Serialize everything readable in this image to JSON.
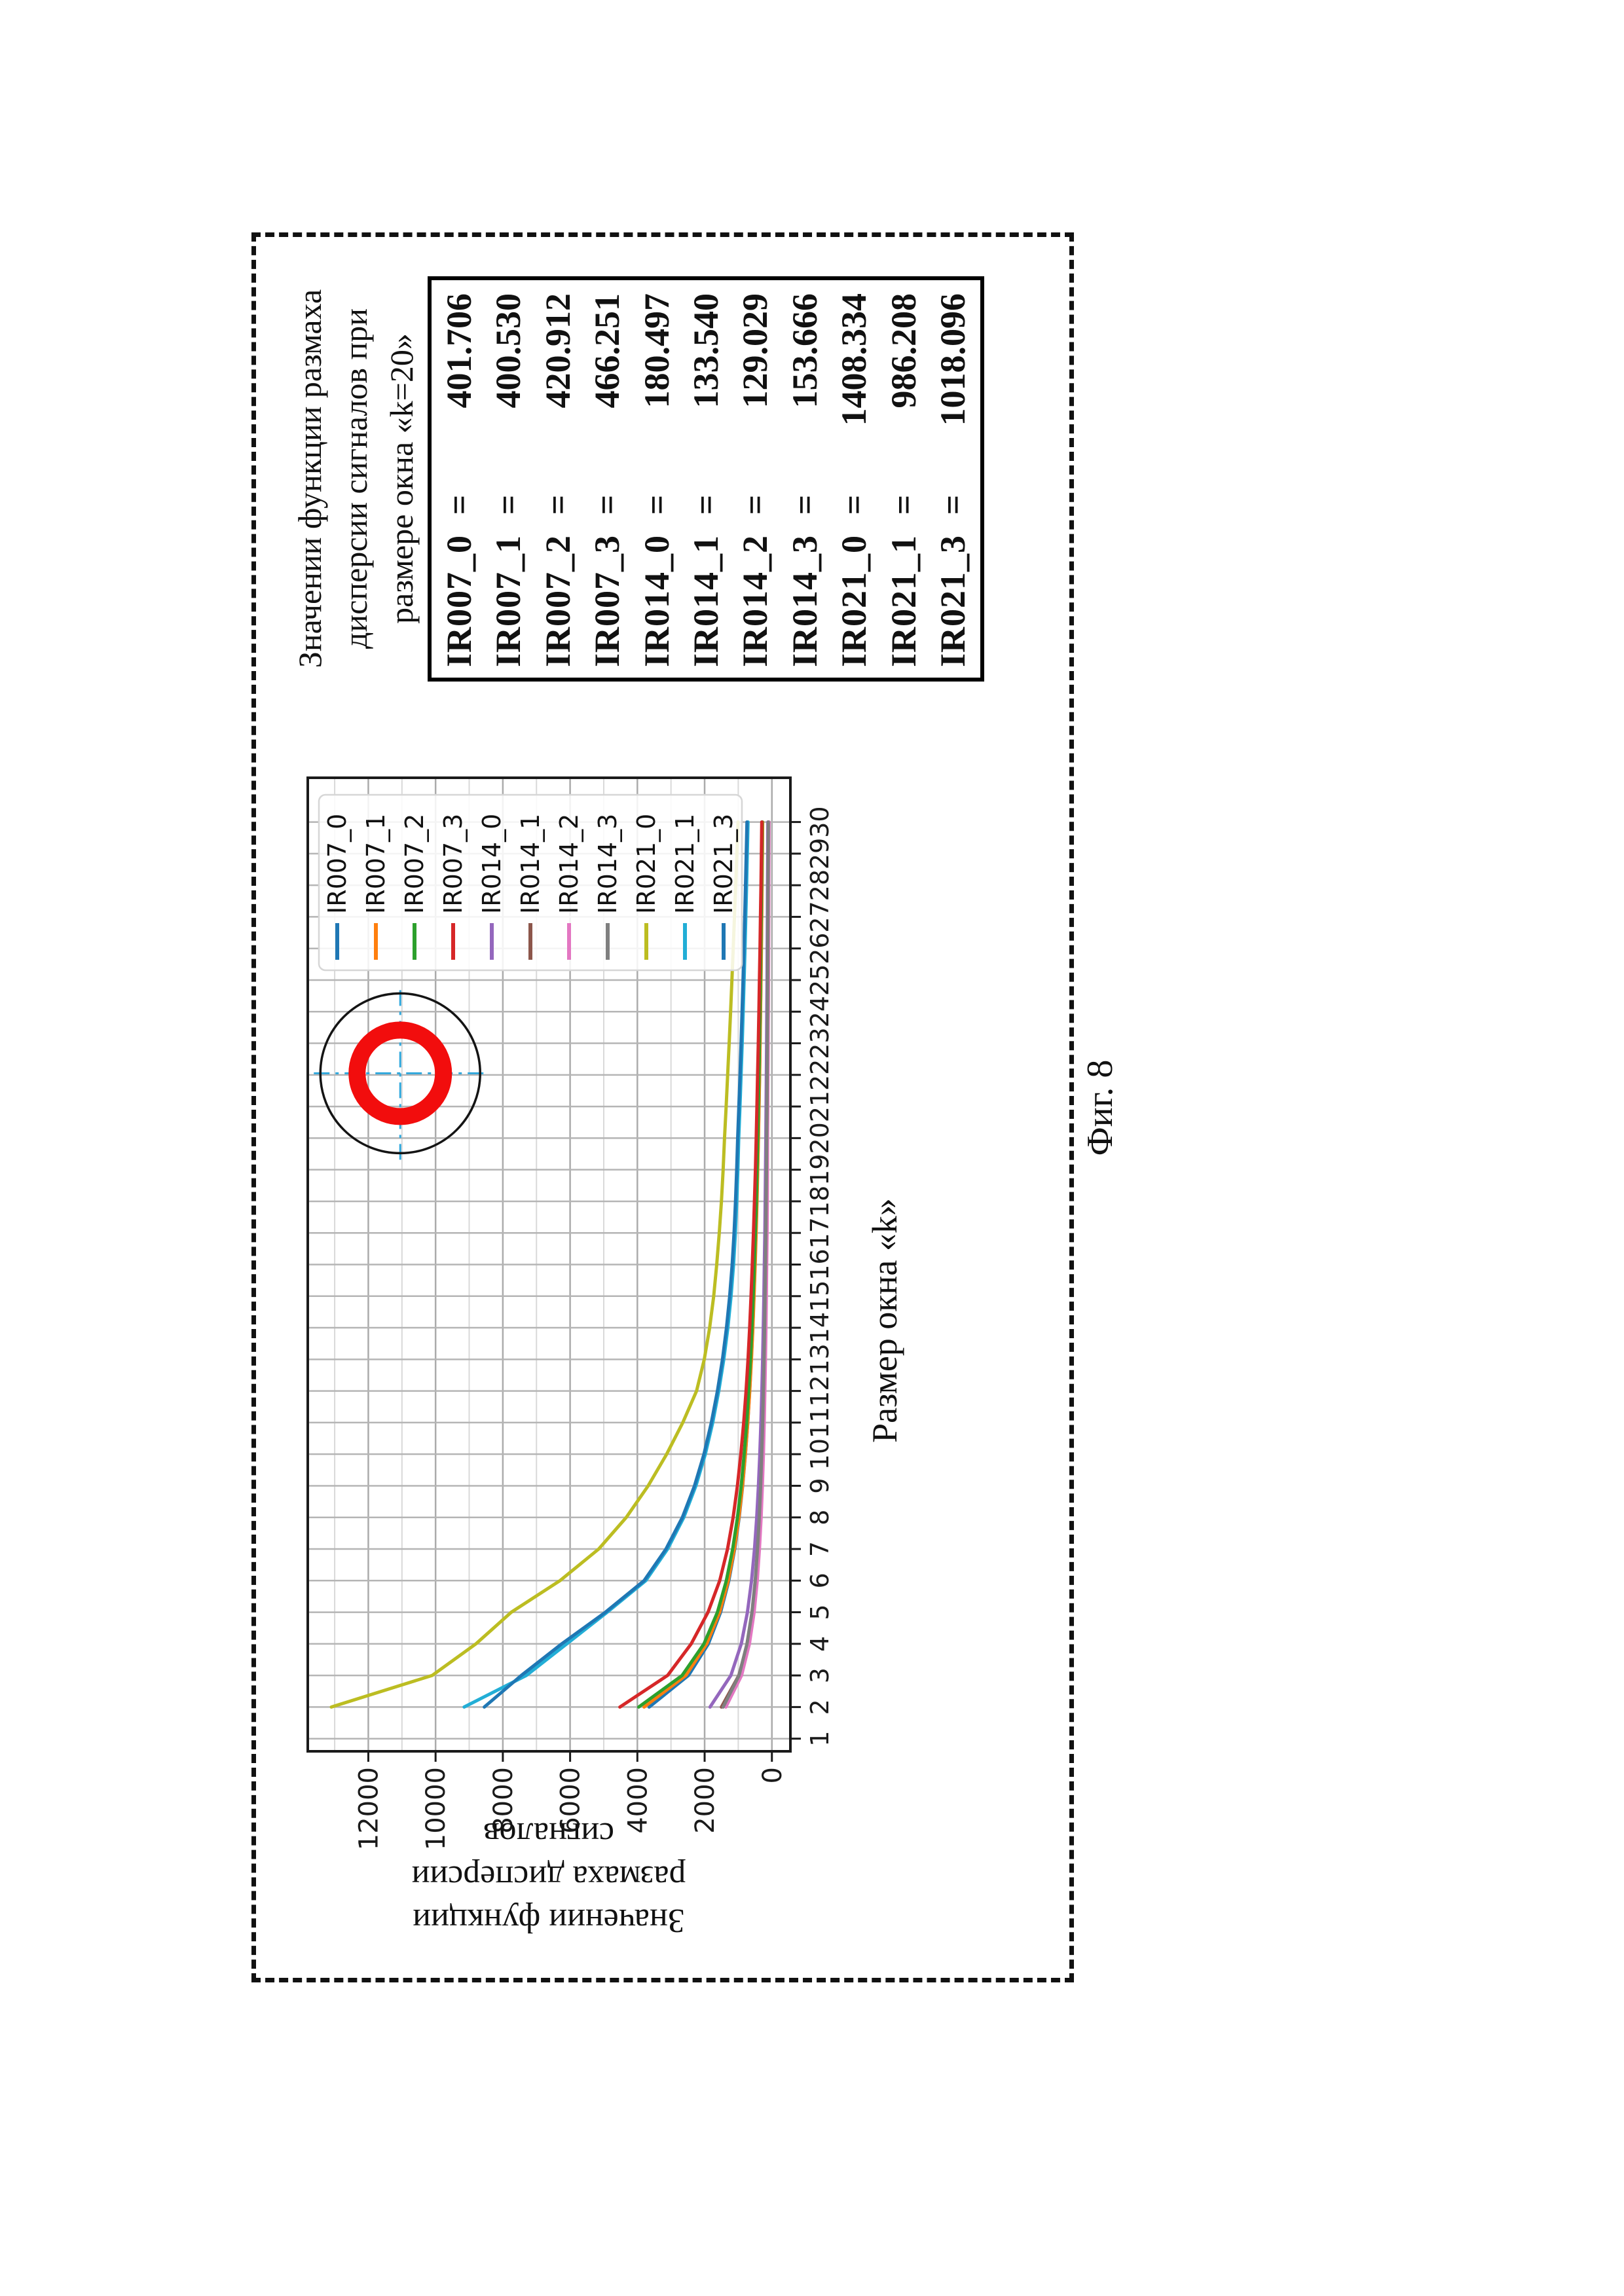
{
  "caption": "Фиг. 8",
  "info_panel": {
    "title_lines": [
      "Значении функции размаха",
      "дисперсии сигналов при",
      "размере окна «k=20»"
    ],
    "equals": "=",
    "rows": [
      {
        "label": "IR007_0",
        "value": "401.706"
      },
      {
        "label": "IR007_1",
        "value": "400.530"
      },
      {
        "label": "IR007_2",
        "value": "420.912"
      },
      {
        "label": "IR007_3",
        "value": "466.251"
      },
      {
        "label": "IR014_0",
        "value": "180.497"
      },
      {
        "label": "IR014_1",
        "value": "133.540"
      },
      {
        "label": "IR014_2",
        "value": "129.029"
      },
      {
        "label": "IR014_3",
        "value": "153.666"
      },
      {
        "label": "IR021_0",
        "value": "1408.334"
      },
      {
        "label": "IR021_1",
        "value": "986.208"
      },
      {
        "label": "IR021_3",
        "value": "1018.096"
      }
    ]
  },
  "chart_data": {
    "type": "line",
    "title": "",
    "xlabel": "Размер окна «k»",
    "ylabel_lines": [
      "Значении функции",
      "размаха дисперсии",
      "сигналов"
    ],
    "xlim": [
      0.6,
      31.4
    ],
    "ylim": [
      -550,
      13800
    ],
    "grid": true,
    "legend_position": "right-inside",
    "xticks": [
      1,
      2,
      3,
      4,
      5,
      6,
      7,
      8,
      9,
      10,
      11,
      12,
      13,
      14,
      15,
      16,
      17,
      18,
      19,
      20,
      21,
      22,
      23,
      24,
      25,
      26,
      27,
      28,
      29,
      30
    ],
    "yticks": [
      0,
      2000,
      4000,
      6000,
      8000,
      10000,
      12000
    ],
    "yticks_minor": [
      1000,
      3000,
      5000,
      7000,
      9000,
      11000,
      13000
    ],
    "x": [
      2,
      3,
      4,
      5,
      6,
      7,
      8,
      9,
      10,
      11,
      12,
      13,
      14,
      15,
      16,
      17,
      18,
      19,
      20,
      21,
      22,
      23,
      24,
      25,
      26,
      27,
      28,
      29,
      30
    ],
    "series": [
      {
        "name": "IR007_0",
        "color": "#1f77b4",
        "values": [
          3650,
          2480,
          1890,
          1525,
          1280,
          1105,
          972,
          870,
          788,
          718,
          661,
          612,
          570,
          534,
          502,
          474,
          448,
          426,
          402,
          384,
          368,
          353,
          340,
          327,
          316,
          305,
          295,
          286,
          278
        ]
      },
      {
        "name": "IR007_1",
        "color": "#ff7f0e",
        "values": [
          3800,
          2560,
          1938,
          1553,
          1298,
          1117,
          980,
          874,
          789,
          717,
          659,
          608,
          566,
          530,
          498,
          469,
          443,
          421,
          400,
          382,
          366,
          351,
          337,
          325,
          313,
          303,
          293,
          284,
          275
        ]
      },
      {
        "name": "IR007_2",
        "color": "#2ca02c",
        "values": [
          3960,
          2669,
          2021,
          1620,
          1355,
          1166,
          1023,
          913,
          825,
          749,
          690,
          636,
          593,
          556,
          522,
          492,
          463,
          442,
          421,
          402,
          385,
          369,
          355,
          342,
          330,
          319,
          308,
          299,
          290
        ]
      },
      {
        "name": "IR007_3",
        "color": "#d62728",
        "values": [
          4520,
          3100,
          2400,
          1900,
          1550,
          1320,
          1152,
          1026,
          923,
          839,
          769,
          709,
          662,
          620,
          583,
          548,
          518,
          490,
          466,
          445,
          425,
          405,
          387,
          370,
          354,
          339,
          325,
          312,
          300
        ]
      },
      {
        "name": "IR014_0",
        "color": "#9467bd",
        "values": [
          1840,
          1219,
          911,
          727,
          604,
          517,
          451,
          400,
          360,
          327,
          299,
          276,
          256,
          239,
          224,
          210,
          199,
          189,
          180,
          172,
          164,
          157,
          150,
          144,
          139,
          133,
          129,
          124,
          120
        ]
      },
      {
        "name": "IR014_1",
        "color": "#8c564b",
        "values": [
          1500,
          982,
          724,
          571,
          471,
          400,
          347,
          306,
          274,
          248,
          226,
          208,
          192,
          179,
          167,
          156,
          147,
          140,
          134,
          127,
          121,
          116,
          111,
          107,
          103,
          99,
          95,
          92,
          89
        ]
      },
      {
        "name": "IR014_2",
        "color": "#e377c2",
        "values": [
          1370,
          903,
          669,
          528,
          435,
          370,
          321,
          283,
          253,
          229,
          209,
          192,
          177,
          165,
          154,
          144,
          136,
          132,
          129,
          123,
          117,
          112,
          108,
          103,
          99,
          96,
          92,
          89,
          86
        ]
      },
      {
        "name": "IR014_3",
        "color": "#7f7f7f",
        "values": [
          1450,
          977,
          740,
          593,
          496,
          427,
          375,
          334,
          302,
          274,
          252,
          233,
          217,
          203,
          190,
          180,
          170,
          161,
          154,
          147,
          141,
          135,
          130,
          125,
          121,
          117,
          113,
          109,
          106
        ]
      },
      {
        "name": "IR021_0",
        "color": "#bcbd22",
        "values": [
          13100,
          10100,
          8800,
          7750,
          6300,
          5150,
          4330,
          3680,
          3130,
          2650,
          2240,
          2010,
          1850,
          1730,
          1640,
          1565,
          1500,
          1450,
          1408,
          1360,
          1315,
          1270,
          1228,
          1188,
          1150,
          1112,
          1075,
          1040,
          1005
        ]
      },
      {
        "name": "IR021_1",
        "color": "#22aed6",
        "values": [
          9150,
          7300,
          6100,
          4900,
          3750,
          3100,
          2620,
          2260,
          1980,
          1760,
          1580,
          1430,
          1310,
          1215,
          1140,
          1085,
          1045,
          1012,
          986,
          950,
          916,
          884,
          854,
          826,
          800,
          776,
          753,
          731,
          710
        ]
      },
      {
        "name": "IR021_3",
        "color": "#1f77b4",
        "values": [
          8550,
          7450,
          6250,
          4950,
          3800,
          3150,
          2660,
          2300,
          2020,
          1800,
          1620,
          1470,
          1350,
          1255,
          1180,
          1125,
          1082,
          1047,
          1018,
          982,
          948,
          916,
          886,
          858,
          832,
          807,
          784,
          762,
          741
        ]
      }
    ],
    "annotation": {
      "k": 22.05,
      "value": 11050,
      "outer_r": 122,
      "ring_r": 66,
      "ring_w": 26,
      "outer_color": "#141414",
      "ring_color": "#f20d0d",
      "cross_color": "#2fa8dd"
    }
  }
}
